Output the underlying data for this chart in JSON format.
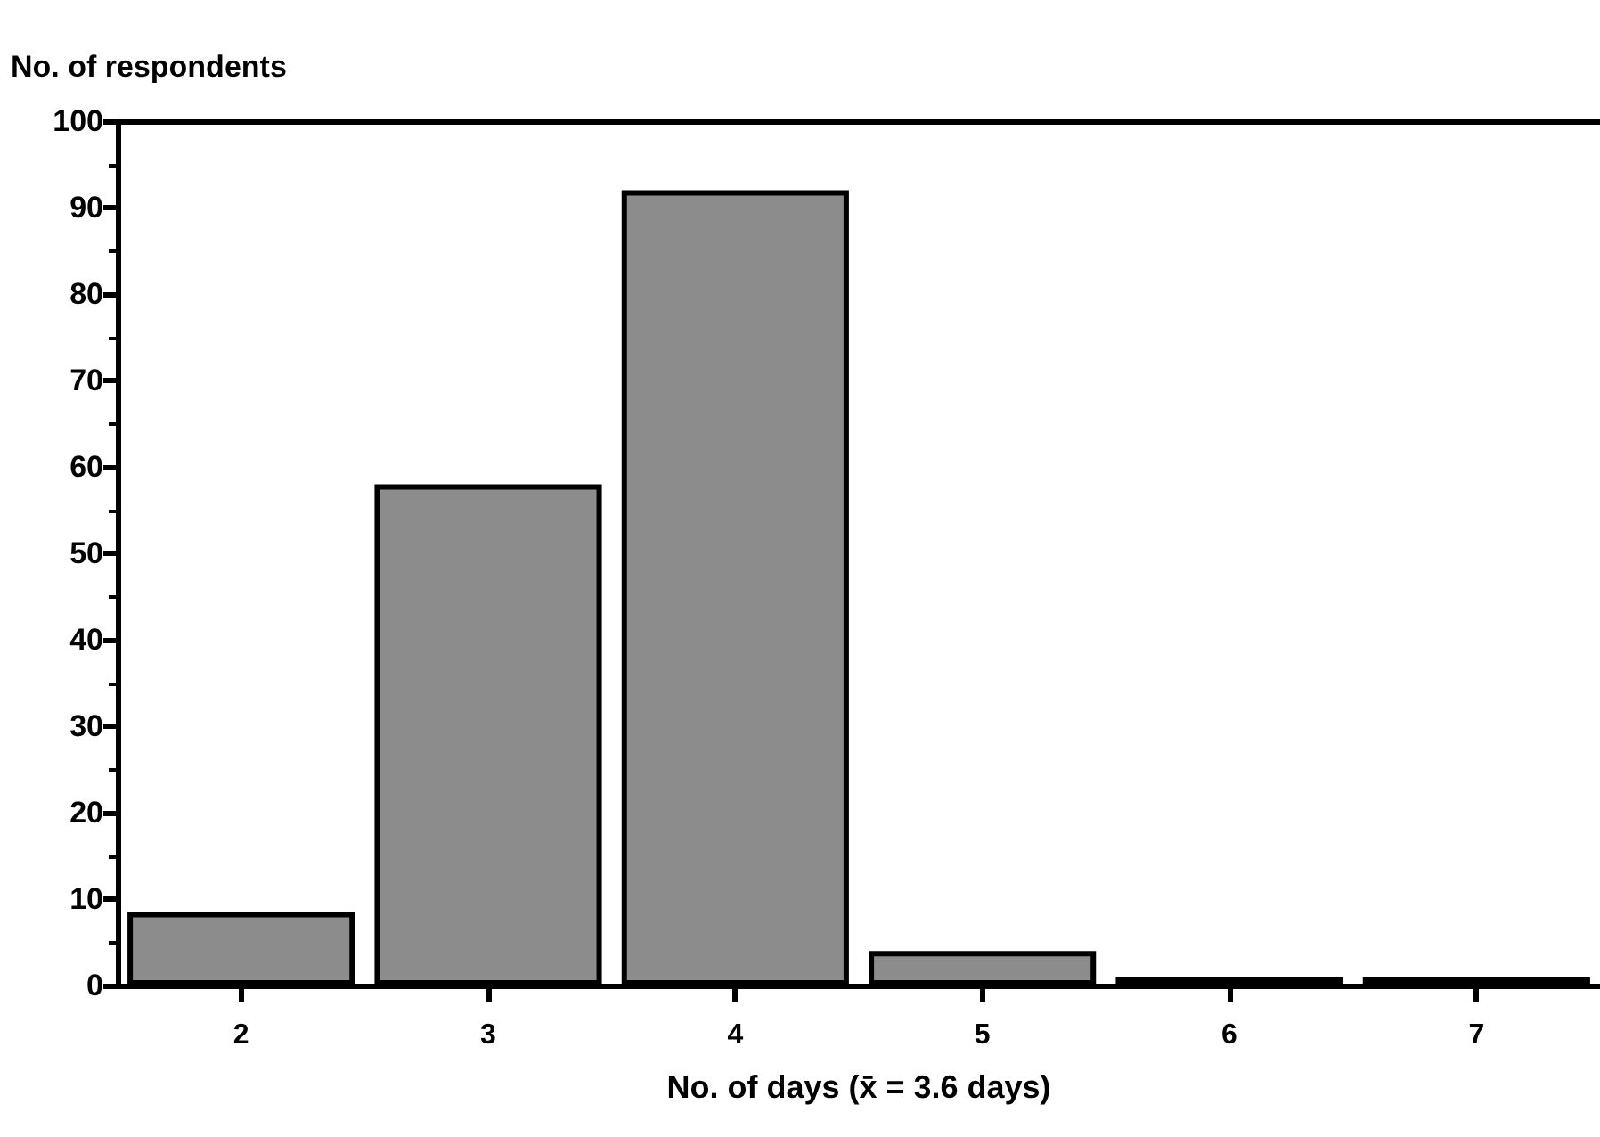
{
  "chart_data": {
    "type": "bar",
    "ylabel": "No. of respondents",
    "xlabel": "No. of days (x̄ = 3.6 days)",
    "categories": [
      "2",
      "3",
      "4",
      "5",
      "6",
      "7"
    ],
    "values": [
      8.5,
      58,
      92,
      4,
      1,
      1
    ],
    "color": "#8c8c8c",
    "ylim": [
      0,
      100
    ],
    "yticks": [
      0,
      10,
      20,
      30,
      40,
      50,
      60,
      70,
      80,
      90,
      100
    ],
    "grid": false
  }
}
